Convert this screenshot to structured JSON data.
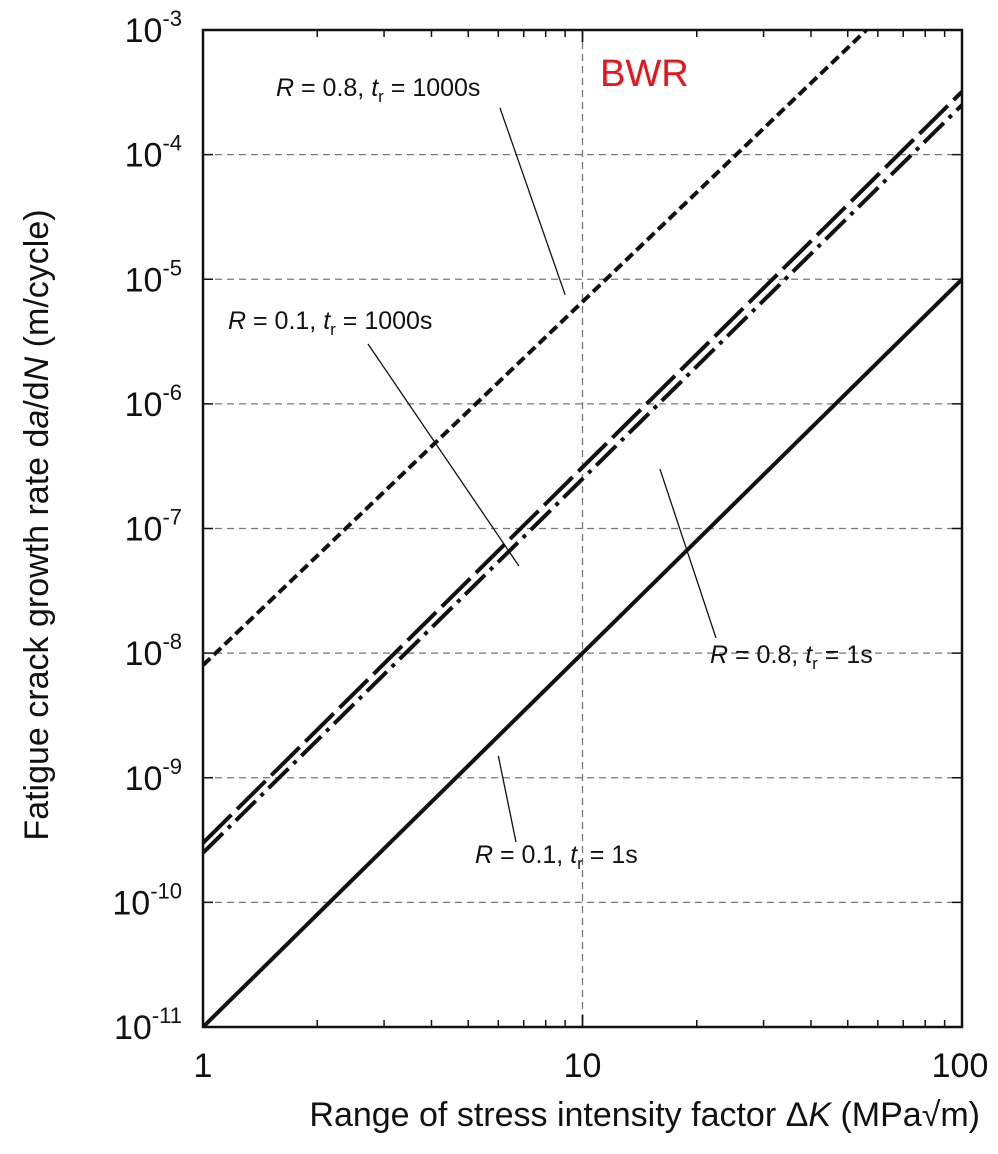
{
  "chart_data": {
    "type": "line",
    "title": "",
    "tag": "BWR",
    "tag_color": "#e8141c",
    "xlabel": {
      "prefix": "Range of stress intensity factor Δ",
      "italic": "K",
      "suffix": " (MPa√m)"
    },
    "ylabel": {
      "prefix": "Fatigue crack growth rate d",
      "italic1": "a",
      "mid": "/d",
      "italic2": "N",
      "suffix": "  (m/cycle)"
    },
    "x_scale": "log",
    "y_scale": "log",
    "xlim": [
      1,
      100
    ],
    "ylim": [
      1e-11,
      0.001
    ],
    "x_ticks": [
      {
        "value": 1,
        "label": "1"
      },
      {
        "value": 10,
        "label": "10"
      },
      {
        "value": 100,
        "label": "100"
      }
    ],
    "y_ticks": [
      {
        "value": 1e-11,
        "base": "10",
        "exp": "-11"
      },
      {
        "value": 1e-10,
        "base": "10",
        "exp": "-10"
      },
      {
        "value": 1e-09,
        "base": "10",
        "exp": "-9"
      },
      {
        "value": 1e-08,
        "base": "10",
        "exp": "-8"
      },
      {
        "value": 1e-07,
        "base": "10",
        "exp": "-7"
      },
      {
        "value": 1e-06,
        "base": "10",
        "exp": "-6"
      },
      {
        "value": 1e-05,
        "base": "10",
        "exp": "-5"
      },
      {
        "value": 0.0001,
        "base": "10",
        "exp": "-4"
      },
      {
        "value": 0.001,
        "base": "10",
        "exp": "-3"
      }
    ],
    "grid": true,
    "series": [
      {
        "id": "s1",
        "style": "short-dash",
        "x": [
          1,
          56
        ],
        "y": [
          8e-09,
          0.001
        ]
      },
      {
        "id": "s2",
        "style": "long-dash",
        "x": [
          1,
          100
        ],
        "y": [
          3e-10,
          0.00032
        ]
      },
      {
        "id": "s3",
        "style": "dash-dot",
        "x": [
          1,
          100
        ],
        "y": [
          2.5e-10,
          0.00025
        ]
      },
      {
        "id": "s4",
        "style": "solid",
        "x": [
          1,
          100
        ],
        "y": [
          1e-11,
          1e-05
        ]
      }
    ],
    "annotations": [
      {
        "id": "a1",
        "R": "R",
        "r_val": " = 0.8, ",
        "t": "t",
        "t_sub": "r",
        "t_val": " = 1000s",
        "pointer_to": {
          "x": 9,
          "y": 7.5e-06
        }
      },
      {
        "id": "a2",
        "R": "R",
        "r_val": " = 0.1, ",
        "t": "t",
        "t_sub": "r",
        "t_val": " = 1000s",
        "pointer_to": {
          "x": 6.8,
          "y": 5e-08
        }
      },
      {
        "id": "a3",
        "R": "R",
        "r_val": " = 0.8, ",
        "t": "t",
        "t_sub": "r",
        "t_val": " = 1s",
        "pointer_to": {
          "x": 16,
          "y": 3e-07
        }
      },
      {
        "id": "a4",
        "R": "R",
        "r_val": " = 0.1, ",
        "t": "t",
        "t_sub": "r",
        "t_val": " = 1s",
        "pointer_to": {
          "x": 6,
          "y": 1.5e-09
        }
      }
    ]
  }
}
